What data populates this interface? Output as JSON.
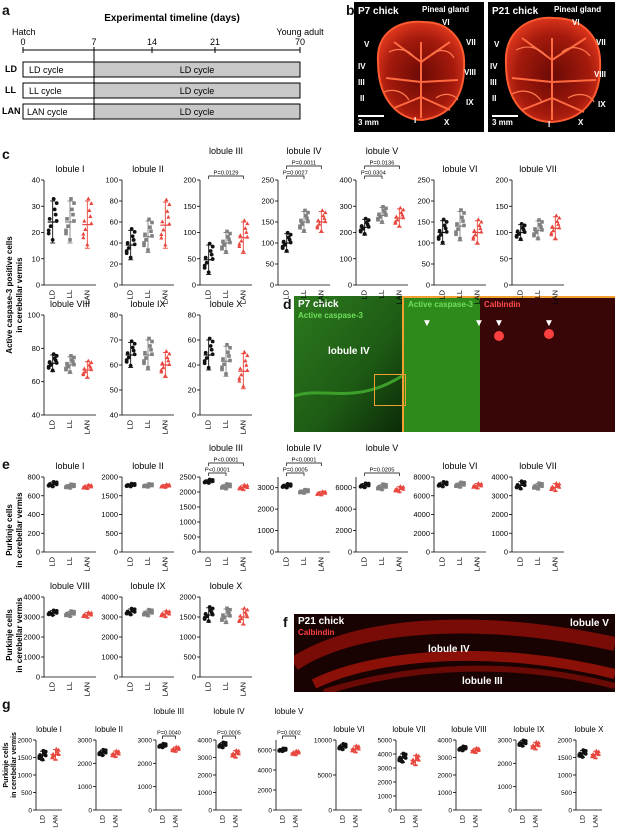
{
  "panel_labels": {
    "a": "a",
    "b": "b",
    "c": "c",
    "d": "d",
    "e": "e",
    "f": "f",
    "g": "g"
  },
  "panel_a": {
    "title": "Experimental timeline (days)",
    "hatch": "Hatch",
    "young_adult": "Young adult",
    "ticks": [
      "0",
      "7",
      "14",
      "21",
      "70"
    ],
    "rows": [
      {
        "group": "LD",
        "early": "LD cycle",
        "late": "LD cycle"
      },
      {
        "group": "LL",
        "early": "LL cycle",
        "late": "LD cycle"
      },
      {
        "group": "LAN",
        "early": "LAN cycle",
        "late": "LD cycle"
      }
    ]
  },
  "panel_b": {
    "left": {
      "title": "P7 chick",
      "pineal": "Pineal gland",
      "scale": "3 mm",
      "lobules": [
        "I",
        "II",
        "III",
        "IV",
        "V",
        "VI",
        "VII",
        "VIII",
        "IX",
        "X"
      ]
    },
    "right": {
      "title": "P21 chick",
      "pineal": "Pineal gland",
      "scale": "3 mm",
      "lobules": [
        "I",
        "II",
        "III",
        "IV",
        "V",
        "VI",
        "VII",
        "VIII",
        "IX",
        "X"
      ]
    }
  },
  "panel_c_ylabel": [
    "Active caspase-3 positive cells",
    "in cerebellar vermis"
  ],
  "panel_e_ylabel": [
    "Purkinje cells",
    "in cerebellar vermis"
  ],
  "panel_g_ylabel": [
    "Purkinje cells",
    "in cerebellar vermis"
  ],
  "panel_d": {
    "title": "P7 chick",
    "stain": "Active caspase-3",
    "lobule": "lobule IV",
    "inset_green": "Active caspase-3",
    "inset_red": "Calbindin"
  },
  "panel_f": {
    "title": "P21 chick",
    "stain": "Calbindin",
    "lobules": [
      "lobule V",
      "lobule IV",
      "lobule III"
    ]
  },
  "colors": {
    "LD": "#111111",
    "LL": "#808080",
    "LAN": "#e8473f",
    "orange": "#f0a030"
  },
  "chart_data": [
    {
      "panel": "c",
      "type": "scatter",
      "title": "lobule I",
      "groups": [
        "LD",
        "LL",
        "LAN"
      ],
      "ylim": [
        0,
        40
      ],
      "yticks": [
        0,
        10,
        20,
        30,
        40
      ],
      "means": [
        24,
        24,
        23
      ],
      "sd": [
        8,
        8,
        9
      ]
    },
    {
      "panel": "c",
      "type": "scatter",
      "title": "lobule II",
      "groups": [
        "LD",
        "LL",
        "LAN"
      ],
      "ylim": [
        0,
        100
      ],
      "yticks": [
        0,
        20,
        40,
        60,
        80,
        100
      ],
      "means": [
        38,
        46,
        57
      ],
      "sd": [
        14,
        15,
        22
      ]
    },
    {
      "panel": "c",
      "type": "scatter",
      "title": "lobule III",
      "groups": [
        "LD",
        "LL",
        "LAN"
      ],
      "ylim": [
        0,
        200
      ],
      "yticks": [
        0,
        50,
        100,
        150,
        200
      ],
      "means": [
        48,
        80,
        90
      ],
      "sd": [
        28,
        20,
        30
      ],
      "brackets": [
        {
          "from": 0,
          "to": 2,
          "label": "P=0.0129"
        }
      ]
    },
    {
      "panel": "c",
      "type": "scatter",
      "title": "lobule IV",
      "groups": [
        "LD",
        "LL",
        "LAN"
      ],
      "ylim": [
        0,
        250
      ],
      "yticks": [
        0,
        50,
        100,
        150,
        200,
        250
      ],
      "means": [
        100,
        150,
        150
      ],
      "sd": [
        22,
        25,
        25
      ],
      "brackets": [
        {
          "from": 0,
          "to": 1,
          "label": "P=0.0027"
        },
        {
          "from": 0,
          "to": 2,
          "label": "P=0.0011"
        }
      ]
    },
    {
      "panel": "c",
      "type": "scatter",
      "title": "lobule V",
      "groups": [
        "LD",
        "LL",
        "LAN"
      ],
      "ylim": [
        0,
        400
      ],
      "yticks": [
        0,
        100,
        200,
        300,
        400
      ],
      "means": [
        220,
        265,
        255
      ],
      "sd": [
        30,
        30,
        35
      ],
      "brackets": [
        {
          "from": 0,
          "to": 1,
          "label": "P=0.0304"
        },
        {
          "from": 0,
          "to": 2,
          "label": "P=0.0136"
        }
      ]
    },
    {
      "panel": "c",
      "type": "scatter",
      "title": "lobule VI",
      "groups": [
        "LD",
        "LL",
        "LAN"
      ],
      "ylim": [
        0,
        250
      ],
      "yticks": [
        0,
        50,
        100,
        150,
        200,
        250
      ],
      "means": [
        125,
        140,
        125
      ],
      "sd": [
        28,
        35,
        28
      ]
    },
    {
      "panel": "c",
      "type": "scatter",
      "title": "lobule VII",
      "groups": [
        "LD",
        "LL",
        "LAN"
      ],
      "ylim": [
        0,
        200
      ],
      "yticks": [
        0,
        50,
        100,
        150,
        200
      ],
      "means": [
        100,
        104,
        108
      ],
      "sd": [
        15,
        18,
        22
      ]
    },
    {
      "panel": "c",
      "type": "scatter",
      "title": "lobule VIII",
      "groups": [
        "LD",
        "LL",
        "LAN"
      ],
      "ylim": [
        40,
        100
      ],
      "yticks": [
        40,
        60,
        80,
        100
      ],
      "means": [
        71,
        70,
        67
      ],
      "sd": [
        5,
        5,
        5
      ]
    },
    {
      "panel": "c",
      "type": "scatter",
      "title": "lobule IX",
      "groups": [
        "LD",
        "LL",
        "LAN"
      ],
      "ylim": [
        40,
        80
      ],
      "yticks": [
        40,
        50,
        60,
        70,
        80
      ],
      "means": [
        64,
        64,
        60
      ],
      "sd": [
        5,
        6,
        5
      ]
    },
    {
      "panel": "c",
      "type": "scatter",
      "title": "lobule X",
      "groups": [
        "LD",
        "LL",
        "LAN"
      ],
      "ylim": [
        0,
        80
      ],
      "yticks": [
        0,
        20,
        40,
        60,
        80
      ],
      "means": [
        48,
        43,
        35
      ],
      "sd": [
        12,
        12,
        14
      ]
    },
    {
      "panel": "e",
      "type": "scatter",
      "title": "lobule I",
      "groups": [
        "LD",
        "LL",
        "LAN"
      ],
      "ylim": [
        0,
        800
      ],
      "yticks": [
        0,
        200,
        400,
        600,
        800
      ],
      "means": [
        720,
        700,
        695
      ],
      "sd": [
        25,
        20,
        20
      ]
    },
    {
      "panel": "e",
      "type": "scatter",
      "title": "lobule II",
      "groups": [
        "LD",
        "LL",
        "LAN"
      ],
      "ylim": [
        0,
        2000
      ],
      "yticks": [
        0,
        500,
        1000,
        1500,
        2000
      ],
      "means": [
        1780,
        1770,
        1760
      ],
      "sd": [
        40,
        40,
        40
      ]
    },
    {
      "panel": "e",
      "type": "scatter",
      "title": "lobule III",
      "groups": [
        "LD",
        "LL",
        "LAN"
      ],
      "ylim": [
        0,
        2500
      ],
      "yticks": [
        0,
        500,
        1000,
        1500,
        2000,
        2500
      ],
      "means": [
        2350,
        2180,
        2150
      ],
      "sd": [
        60,
        80,
        80
      ],
      "brackets": [
        {
          "from": 0,
          "to": 1,
          "label": "P<0.0001"
        },
        {
          "from": 0,
          "to": 2,
          "label": "P<0.0001"
        }
      ]
    },
    {
      "panel": "e",
      "type": "scatter",
      "title": "lobule IV",
      "groups": [
        "LD",
        "LL",
        "LAN"
      ],
      "ylim": [
        0,
        3500
      ],
      "yticks": [
        0,
        1000,
        2000,
        3000
      ],
      "means": [
        3080,
        2820,
        2740
      ],
      "sd": [
        90,
        80,
        80
      ],
      "brackets": [
        {
          "from": 0,
          "to": 1,
          "label": "P=0.0005"
        },
        {
          "from": 0,
          "to": 2,
          "label": "P<0.0001"
        }
      ]
    },
    {
      "panel": "e",
      "type": "scatter",
      "title": "lobule V",
      "groups": [
        "LD",
        "LL",
        "LAN"
      ],
      "ylim": [
        0,
        7000
      ],
      "yticks": [
        0,
        2000,
        4000,
        6000
      ],
      "means": [
        6200,
        6050,
        5850
      ],
      "sd": [
        200,
        250,
        250
      ],
      "brackets": [
        {
          "from": 0,
          "to": 2,
          "label": "P=0.0205"
        }
      ]
    },
    {
      "panel": "e",
      "type": "scatter",
      "title": "lobule VI",
      "groups": [
        "LD",
        "LL",
        "LAN"
      ],
      "ylim": [
        0,
        8000
      ],
      "yticks": [
        0,
        2000,
        4000,
        6000,
        8000
      ],
      "means": [
        7200,
        7150,
        7050
      ],
      "sd": [
        250,
        250,
        250
      ]
    },
    {
      "panel": "e",
      "type": "scatter",
      "title": "lobule VII",
      "groups": [
        "LD",
        "LL",
        "LAN"
      ],
      "ylim": [
        0,
        4000
      ],
      "yticks": [
        0,
        1000,
        2000,
        3000,
        4000
      ],
      "means": [
        3550,
        3500,
        3450
      ],
      "sd": [
        200,
        150,
        200
      ]
    },
    {
      "panel": "e",
      "type": "scatter",
      "title": "lobule VIII",
      "groups": [
        "LD",
        "LL",
        "LAN"
      ],
      "ylim": [
        0,
        4000
      ],
      "yticks": [
        0,
        1000,
        2000,
        3000,
        4000
      ],
      "means": [
        3200,
        3150,
        3100
      ],
      "sd": [
        120,
        130,
        130
      ]
    },
    {
      "panel": "e",
      "type": "scatter",
      "title": "lobule IX",
      "groups": [
        "LD",
        "LL",
        "LAN"
      ],
      "ylim": [
        0,
        4000
      ],
      "yticks": [
        0,
        1000,
        2000,
        3000,
        4000
      ],
      "means": [
        3250,
        3200,
        3150
      ],
      "sd": [
        150,
        150,
        150
      ]
    },
    {
      "panel": "e",
      "type": "scatter",
      "title": "lobule X",
      "groups": [
        "LD",
        "LL",
        "LAN"
      ],
      "ylim": [
        0,
        2000
      ],
      "yticks": [
        0,
        500,
        1000,
        1500,
        2000
      ],
      "means": [
        1550,
        1520,
        1500
      ],
      "sd": [
        180,
        180,
        200
      ]
    },
    {
      "panel": "g",
      "type": "scatter",
      "title": "lobule I",
      "groups": [
        "LD",
        "LAN"
      ],
      "ylim": [
        0,
        2000
      ],
      "yticks": [
        0,
        500,
        1000,
        1500,
        2000
      ],
      "means": [
        1550,
        1580
      ],
      "sd": [
        130,
        150
      ]
    },
    {
      "panel": "g",
      "type": "scatter",
      "title": "lobule II",
      "groups": [
        "LD",
        "LAN"
      ],
      "ylim": [
        0,
        3000
      ],
      "yticks": [
        0,
        1000,
        2000,
        3000
      ],
      "means": [
        2450,
        2400
      ],
      "sd": [
        120,
        130
      ]
    },
    {
      "panel": "g",
      "type": "scatter",
      "title": "lobule III",
      "groups": [
        "LD",
        "LAN"
      ],
      "ylim": [
        0,
        3000
      ],
      "yticks": [
        0,
        1000,
        2000,
        3000
      ],
      "means": [
        2750,
        2600
      ],
      "sd": [
        80,
        100
      ],
      "brackets": [
        {
          "from": 0,
          "to": 1,
          "label": "P=0.0040"
        }
      ]
    },
    {
      "panel": "g",
      "type": "scatter",
      "title": "lobule IV",
      "groups": [
        "LD",
        "LAN"
      ],
      "ylim": [
        0,
        4000
      ],
      "yticks": [
        0,
        1000,
        2000,
        3000,
        4000
      ],
      "means": [
        3700,
        3200
      ],
      "sd": [
        150,
        200
      ],
      "brackets": [
        {
          "from": 0,
          "to": 1,
          "label": "P=0.0005"
        }
      ]
    },
    {
      "panel": "g",
      "type": "scatter",
      "title": "lobule V",
      "groups": [
        "LD",
        "LAN"
      ],
      "ylim": [
        0,
        7000
      ],
      "yticks": [
        0,
        2000,
        4000,
        6000
      ],
      "means": [
        6000,
        5700
      ],
      "sd": [
        150,
        200
      ],
      "brackets": [
        {
          "from": 0,
          "to": 1,
          "label": "P=0.0002"
        }
      ]
    },
    {
      "panel": "g",
      "type": "scatter",
      "title": "lobule VI",
      "groups": [
        "LD",
        "LAN"
      ],
      "ylim": [
        0,
        10000
      ],
      "yticks": [
        0,
        5000,
        10000
      ],
      "means": [
        9000,
        8700
      ],
      "sd": [
        400,
        450
      ]
    },
    {
      "panel": "g",
      "type": "scatter",
      "title": "lobule VII",
      "groups": [
        "LD",
        "LAN"
      ],
      "ylim": [
        0,
        5000
      ],
      "yticks": [
        0,
        1000,
        2000,
        3000,
        4000,
        5000
      ],
      "means": [
        3700,
        3550
      ],
      "sd": [
        300,
        350
      ]
    },
    {
      "panel": "g",
      "type": "scatter",
      "title": "lobule VIII",
      "groups": [
        "LD",
        "LAN"
      ],
      "ylim": [
        0,
        4000
      ],
      "yticks": [
        0,
        1000,
        2000,
        3000,
        4000
      ],
      "means": [
        3500,
        3400
      ],
      "sd": [
        120,
        130
      ]
    },
    {
      "panel": "g",
      "type": "scatter",
      "title": "lobule IX",
      "groups": [
        "LD",
        "LAN"
      ],
      "ylim": [
        0,
        3000
      ],
      "yticks": [
        0,
        1000,
        2000,
        3000
      ],
      "means": [
        2850,
        2750
      ],
      "sd": [
        120,
        150
      ]
    },
    {
      "panel": "g",
      "type": "scatter",
      "title": "lobule X",
      "groups": [
        "LD",
        "LAN"
      ],
      "ylim": [
        0,
        2000
      ],
      "yticks": [
        0,
        500,
        1000,
        1500,
        2000
      ],
      "means": [
        1600,
        1580
      ],
      "sd": [
        100,
        100
      ]
    }
  ]
}
